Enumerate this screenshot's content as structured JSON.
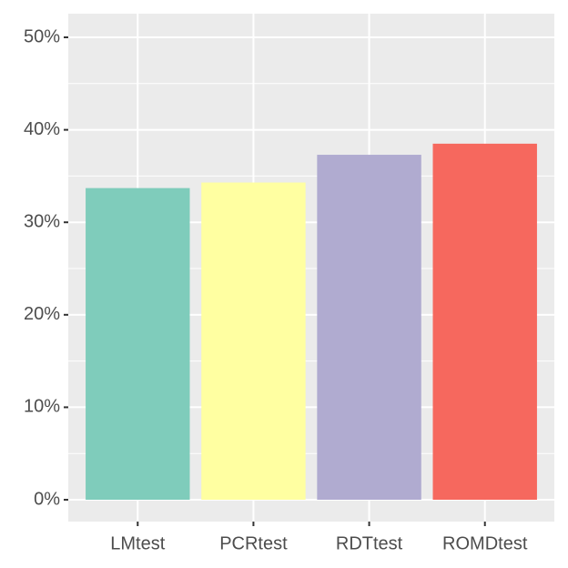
{
  "chart_data": {
    "type": "bar",
    "categories": [
      "LMtest",
      "PCRtest",
      "RDTtest",
      "ROMDtest"
    ],
    "values": [
      33.7,
      34.3,
      37.3,
      38.5
    ],
    "colors": [
      "#7fccbb",
      "#ffffa1",
      "#b0abd0",
      "#f6685e"
    ],
    "ylim": [
      -2.36,
      52.56
    ],
    "yticks": [
      {
        "value": 0,
        "label": "0%"
      },
      {
        "value": 10,
        "label": "10%"
      },
      {
        "value": 20,
        "label": "20%"
      },
      {
        "value": 30,
        "label": "30%"
      },
      {
        "value": 40,
        "label": "40%"
      },
      {
        "value": 50,
        "label": "50%"
      }
    ],
    "grid": true
  }
}
